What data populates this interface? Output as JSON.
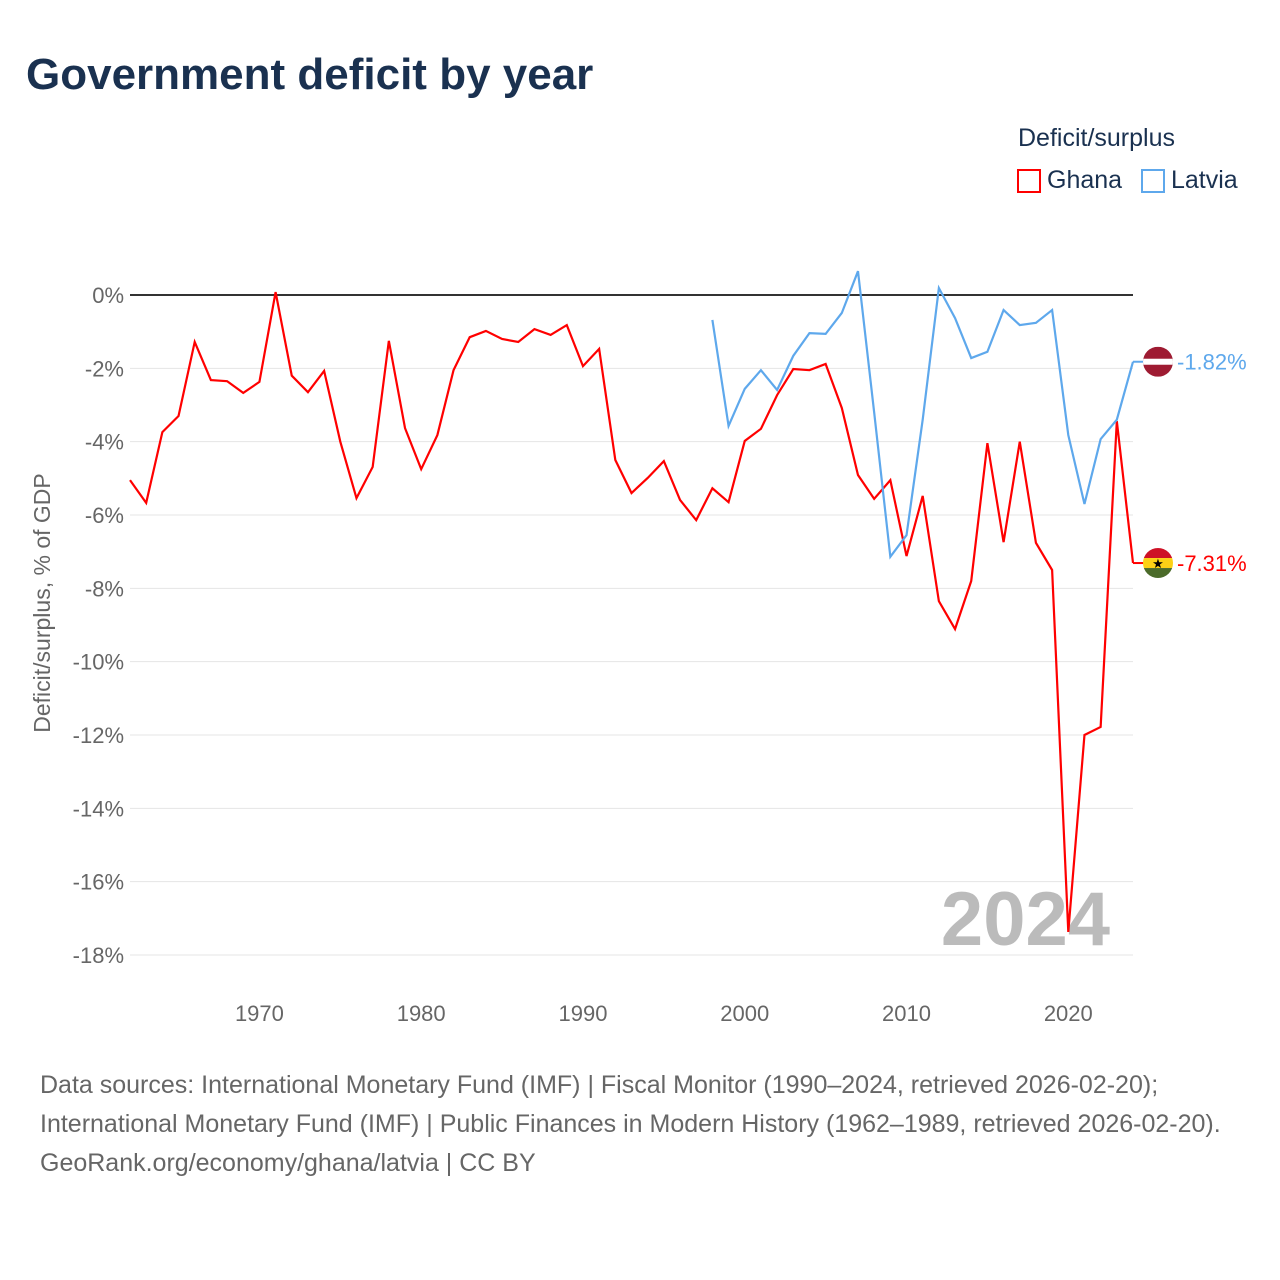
{
  "title": "Government deficit by year",
  "legend": {
    "title": "Deficit/surplus",
    "items": [
      {
        "label": "Ghana",
        "color": "#ff0000"
      },
      {
        "label": "Latvia",
        "color": "#5ea8ec"
      }
    ]
  },
  "year_label": "2024",
  "footer": {
    "sources": "Data sources: International Monetary Fund (IMF) | Fiscal Monitor (1990–2024, retrieved 2026-02-20); International Monetary Fund (IMF) | Public Finances in Modern History (1962–1989, retrieved 2026-02-20).",
    "credit": "GeoRank.org/economy/ghana/latvia | CC BY"
  },
  "chart_data": {
    "type": "line",
    "title": "Government deficit by year",
    "xlabel": "",
    "ylabel": "Deficit/surplus, % of GDP",
    "xlim": [
      1962,
      2024
    ],
    "ylim": [
      -18.5,
      0.8
    ],
    "xticks": [
      1970,
      1980,
      1990,
      2000,
      2010,
      2020
    ],
    "yticks": [
      0,
      -2,
      -4,
      -6,
      -8,
      -10,
      -12,
      -14,
      -16,
      -18
    ],
    "ytick_labels": [
      "0%",
      "-2%",
      "-4%",
      "-6%",
      "-8%",
      "-10%",
      "-12%",
      "-14%",
      "-16%",
      "-18%"
    ],
    "series": [
      {
        "name": "Ghana",
        "color": "#ff0000",
        "end_label": "-7.31%",
        "x_start": 1962,
        "values": [
          -5.05,
          -5.67,
          -3.74,
          -3.3,
          -1.28,
          -2.32,
          -2.35,
          -2.67,
          -2.37,
          0.08,
          -2.2,
          -2.65,
          -2.07,
          -4.0,
          -5.54,
          -4.69,
          -1.25,
          -3.63,
          -4.75,
          -3.82,
          -2.05,
          -1.15,
          -0.98,
          -1.2,
          -1.28,
          -0.93,
          -1.09,
          -0.82,
          -1.94,
          -1.47,
          -4.5,
          -5.4,
          -4.99,
          -4.53,
          -5.59,
          -6.14,
          -5.27,
          -5.65,
          -3.98,
          -3.65,
          -2.73,
          -2.02,
          -2.05,
          -1.88,
          -3.08,
          -4.91,
          -5.56,
          -5.05,
          -7.12,
          -5.48,
          -8.35,
          -9.11,
          -7.8,
          -4.04,
          -6.74,
          -4.0,
          -6.76,
          -7.5,
          -17.37,
          -12.0,
          -11.78,
          -3.44,
          -7.31
        ]
      },
      {
        "name": "Latvia",
        "color": "#5ea8ec",
        "end_label": "-1.82%",
        "x_start": 1998,
        "values": [
          -0.68,
          -3.57,
          -2.56,
          -2.05,
          -2.59,
          -1.66,
          -1.04,
          -1.06,
          -0.49,
          0.65,
          -3.2,
          -7.14,
          -6.55,
          -3.4,
          0.19,
          -0.63,
          -1.72,
          -1.55,
          -0.41,
          -0.82,
          -0.76,
          -0.41,
          -3.82,
          -5.7,
          -3.93,
          -3.4,
          -1.82
        ]
      }
    ]
  }
}
